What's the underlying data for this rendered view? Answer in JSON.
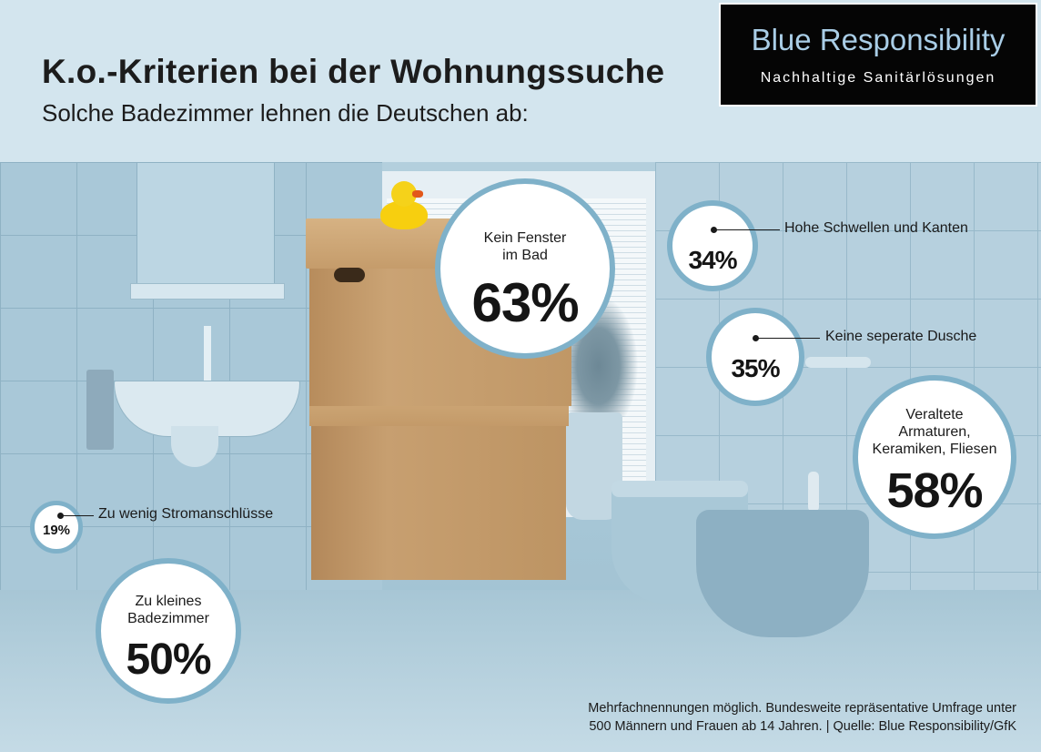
{
  "header": {
    "title": "K.o.-Kriterien bei der Wohnungssuche",
    "subtitle": "Solche Badezimmer lehnen die Deutschen ab:"
  },
  "brand": {
    "name": "Blue Responsibility",
    "tagline": "Nachhaltige Sanitärlösungen"
  },
  "chart_data": {
    "type": "bubble",
    "items": [
      {
        "label": "Kein Fenster im Bad",
        "label_lines": [
          "Kein Fenster",
          "im Bad"
        ],
        "value": 63,
        "display": "63%"
      },
      {
        "label": "Hohe Schwellen und Kanten",
        "value": 34,
        "display": "34%"
      },
      {
        "label": "Keine seperate Dusche",
        "value": 35,
        "display": "35%"
      },
      {
        "label": "Veraltete Armaturen, Keramiken, Fliesen",
        "label_lines": [
          "Veraltete",
          "Armaturen,",
          "Keramiken, Fliesen"
        ],
        "value": 58,
        "display": "58%"
      },
      {
        "label": "Zu wenig Stromanschlüsse",
        "value": 19,
        "display": "19%"
      },
      {
        "label": "Zu kleines Badezimmer",
        "label_lines": [
          "Zu kleines",
          "Badezimmer"
        ],
        "value": 50,
        "display": "50%"
      }
    ]
  },
  "footnote": {
    "line1": "Mehrfachnennungen möglich. Bundesweite repräsentative Umfrage unter",
    "line2": "500 Männern und Frauen ab 14 Jahren. | Quelle: Blue Responsibility/GfK"
  },
  "colors": {
    "bubble_border": "#7fb1c9",
    "header_bg": "#d3e5ee",
    "brand_bg": "#050505",
    "brand_text": "#a9cde6"
  }
}
